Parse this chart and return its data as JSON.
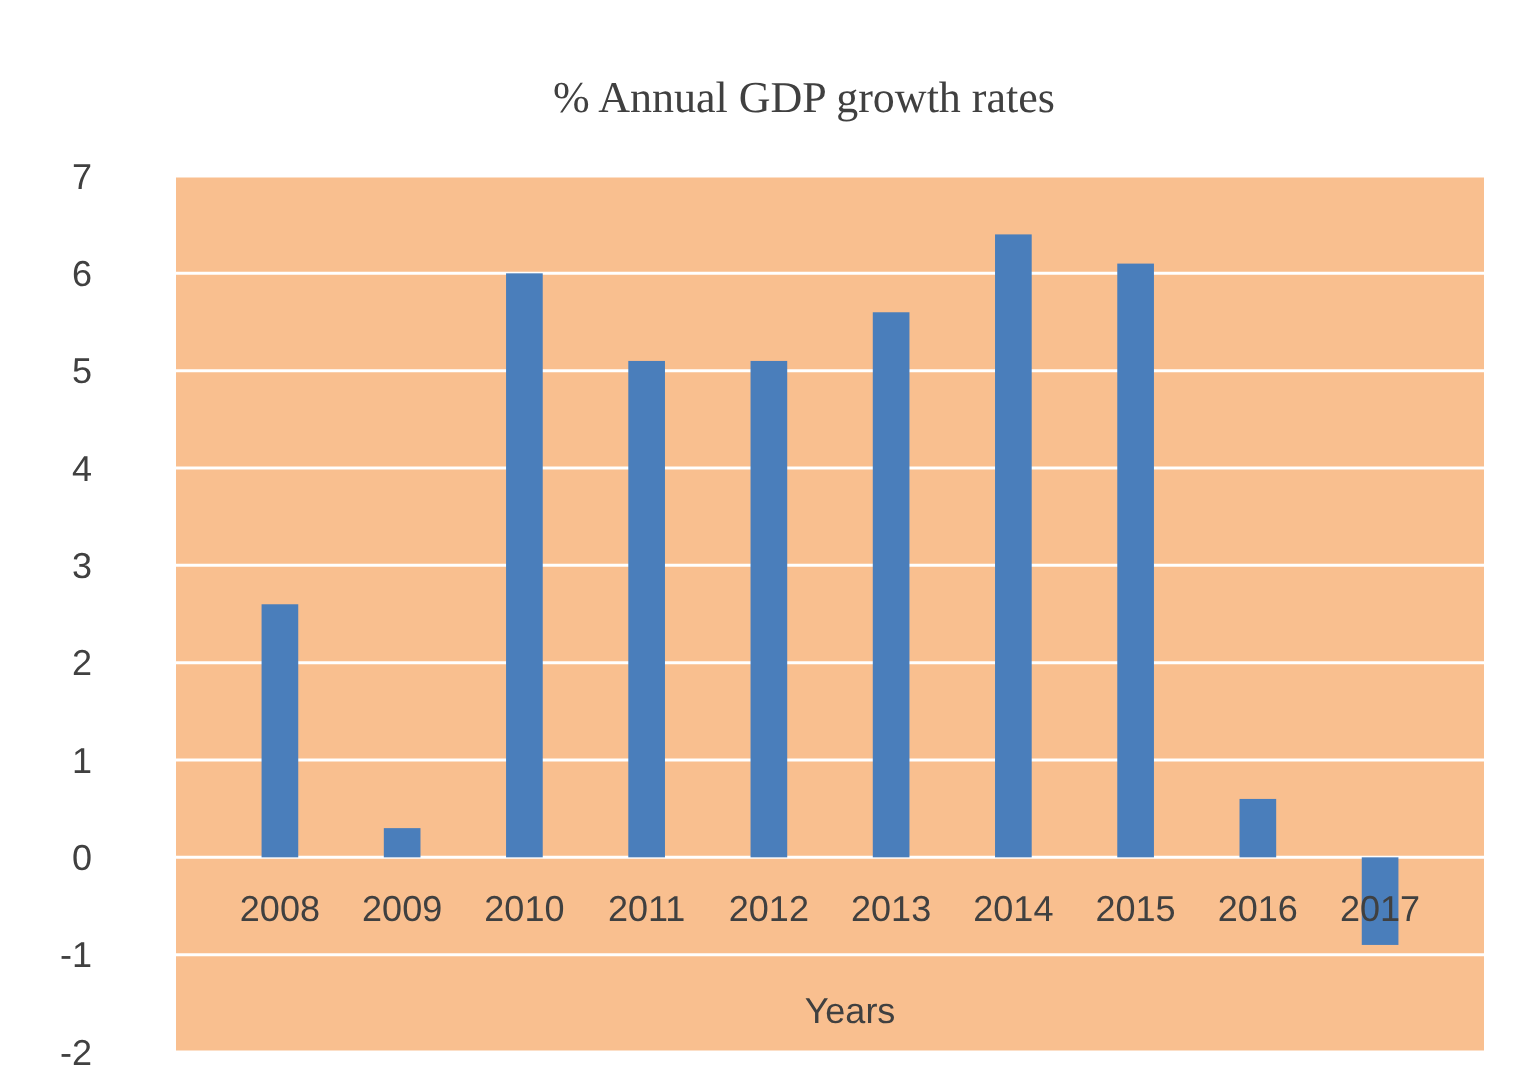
{
  "chart_data": {
    "type": "bar",
    "title": "% Annual GDP growth rates",
    "xlabel": "Years",
    "categories": [
      "2008",
      "2009",
      "2010",
      "2011",
      "2012",
      "2013",
      "2014",
      "2015",
      "2016",
      "2017"
    ],
    "values": [
      2.6,
      0.3,
      6.0,
      5.1,
      5.1,
      5.6,
      6.4,
      6.1,
      0.6,
      -0.9
    ],
    "color": "#4a7ebb",
    "ylim": [
      -2,
      7
    ],
    "yticks": [
      -2,
      -1,
      0,
      1,
      2,
      3,
      4,
      5,
      6,
      7
    ],
    "grid": "y"
  }
}
